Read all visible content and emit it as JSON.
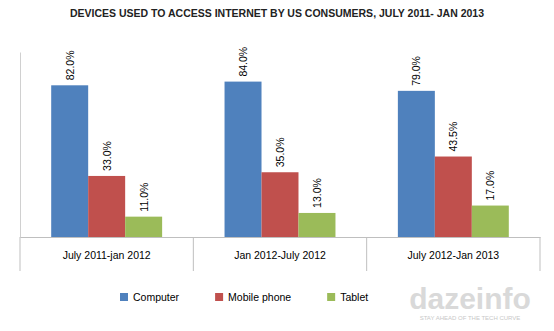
{
  "chart_data": {
    "type": "bar",
    "title": "DEVICES USED TO ACCESS INTERNET BY US CONSUMERS, JULY 2011- JAN 2013",
    "categories": [
      "July 2011-jan 2012",
      "Jan 2012-July 2012",
      "July 2012-Jan 2013"
    ],
    "series": [
      {
        "name": "Computer",
        "color": "#4f81bd",
        "values": [
          82.0,
          84.0,
          79.0
        ],
        "value_labels": [
          "82.0%",
          "84.0%",
          "79.0%"
        ]
      },
      {
        "name": "Mobile phone",
        "color": "#c0504d",
        "values": [
          33.0,
          35.0,
          43.5
        ],
        "value_labels": [
          "33.0%",
          "35.0%",
          "43.5%"
        ]
      },
      {
        "name": "Tablet",
        "color": "#9bbb59",
        "values": [
          11.0,
          13.0,
          17.0
        ],
        "value_labels": [
          "11.0%",
          "13.0%",
          "17.0%"
        ]
      }
    ],
    "ylim": [
      0,
      100
    ],
    "yticks": [],
    "tick_labels": "x",
    "grid": false,
    "data_labels": true,
    "legend": "bottom",
    "annotations": [
      "dazeinfo",
      "STAY AHEAD OF THE TECH CURVE"
    ]
  }
}
